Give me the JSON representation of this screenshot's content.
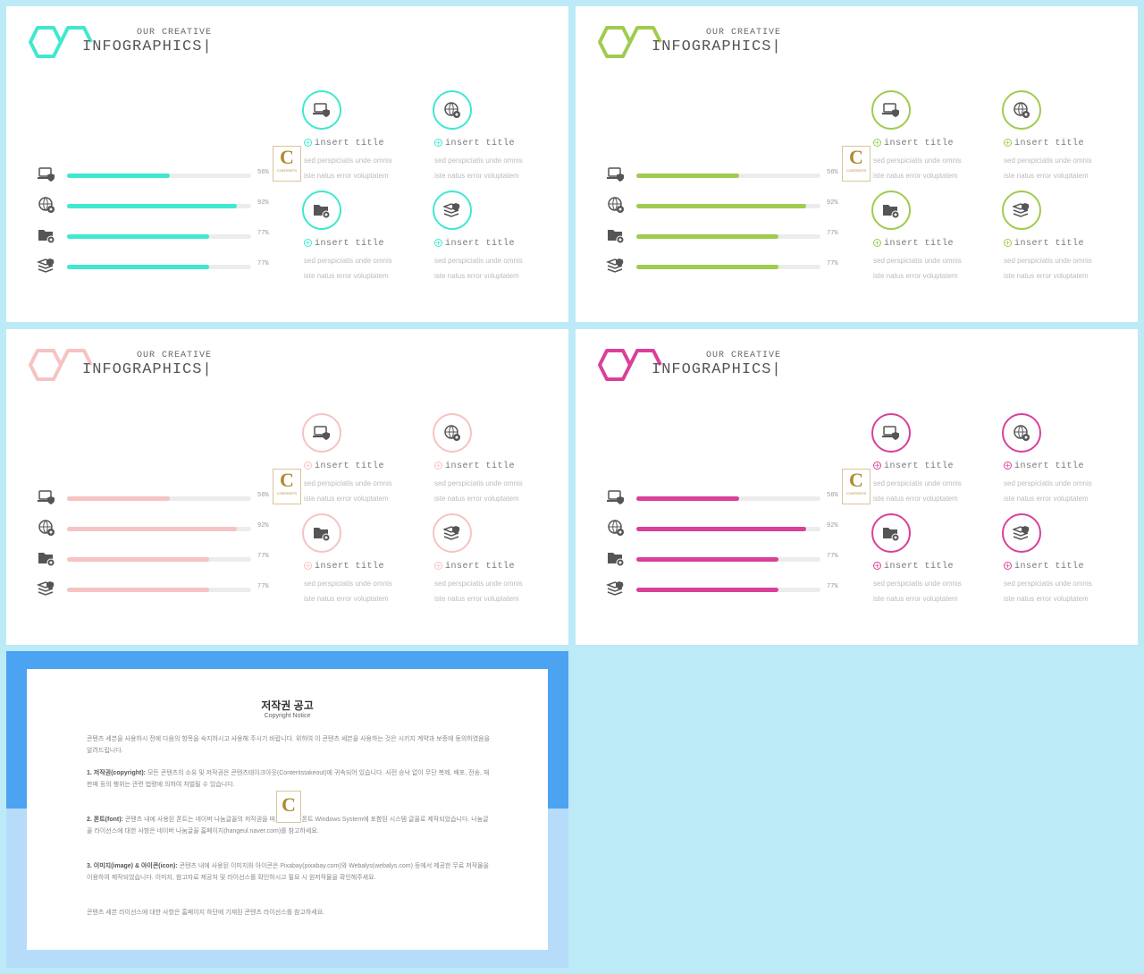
{
  "slides": [
    {
      "accent": "#3fe8cf",
      "subtitle": "OUR CREATIVE",
      "title": "INFOGRAPHICS|"
    },
    {
      "accent": "#9fcb4f",
      "subtitle": "OUR CREATIVE",
      "title": "INFOGRAPHICS|"
    },
    {
      "accent": "#f6c3c3",
      "subtitle": "OUR CREATIVE",
      "title": "INFOGRAPHICS|"
    },
    {
      "accent": "#d9409a",
      "subtitle": "OUR CREATIVE",
      "title": "INFOGRAPHICS|"
    }
  ],
  "bars": [
    {
      "icon": "laptop-shield-icon",
      "value": 56,
      "label": "56%"
    },
    {
      "icon": "globe-gear-icon",
      "value": 92,
      "label": "92%"
    },
    {
      "icon": "folder-gear-icon",
      "value": 77,
      "label": "77%"
    },
    {
      "icon": "stack-shield-icon",
      "value": 77,
      "label": "77%"
    }
  ],
  "items": [
    {
      "icon": "laptop-shield-icon",
      "title": "insert title",
      "line1": "sed perspiciatis unde omnis",
      "line2": "iste natus error voluptatem"
    },
    {
      "icon": "globe-gear-icon",
      "title": "insert title",
      "line1": "sed perspiciatis unde omnis",
      "line2": "iste natus error voluptatem"
    },
    {
      "icon": "folder-gear-icon",
      "title": "insert title",
      "line1": "sed perspiciatis unde omnis",
      "line2": "iste natus error voluptatem"
    },
    {
      "icon": "stack-shield-icon",
      "title": "insert title",
      "line1": "sed perspiciatis unde omnis",
      "line2": "iste natus error voluptatem"
    }
  ],
  "badge": {
    "letter": "C",
    "text": "CONTENTS"
  },
  "notice": {
    "title": "저작권 공고",
    "subtitle": "Copyright Notice",
    "intro": "콘텐츠 세븐을 사용하시 전에 다음의 항목을 숙지하시고 사용해 주시기 바랍니다. 위하여 이 콘텐츠 세븐을 사용하는 것은 시키지 계약과 보증에 동의하였음을 알려드립니다.",
    "p1_head": "1. 저작권(copyright):",
    "p1": " 모든 콘텐츠의 소유 및 저작권은 콘텐츠테이크아웃(Contentstakeout)에 귀속되어 있습니다. 사전 승낙 없이 무단 복제, 배포, 전송, 재판매 등의 행위는 관련 법령에 의하여 처벌될 수 있습니다.",
    "p2_head": "2. 폰트(font):",
    "p2": " 콘텐츠 내에 사용된 폰트는 네이버 나눔글꼴의 저작권을 따르며 무료 폰트 Windows System에 포함된 시스템 글꼴로 제작되었습니다. 나눔글꼴 라이선스에 대한 사항은 네이버 나눔글꼴 홈페이지(hangeul.naver.com)를 참고하세요.",
    "p3_head": "3. 이미지(image) & 아이콘(icon):",
    "p3": " 콘텐츠 내에 사용된 이미지와 아이콘은 Pixabay(pixabay.com)와 Webalys(webalys.com) 등에서 제공한 무료 저작물을 이용하여 제작되었습니다. 이미지, 참고자료 제공처 및 라이선스를 확인하시고 필요 시 원저작물을 확인해주세요.",
    "outro": "콘텐츠 세븐 라이선스에 대한 사항은 홈페이지 하단에 기재된 콘텐츠 라이선스를 참고하세요."
  }
}
